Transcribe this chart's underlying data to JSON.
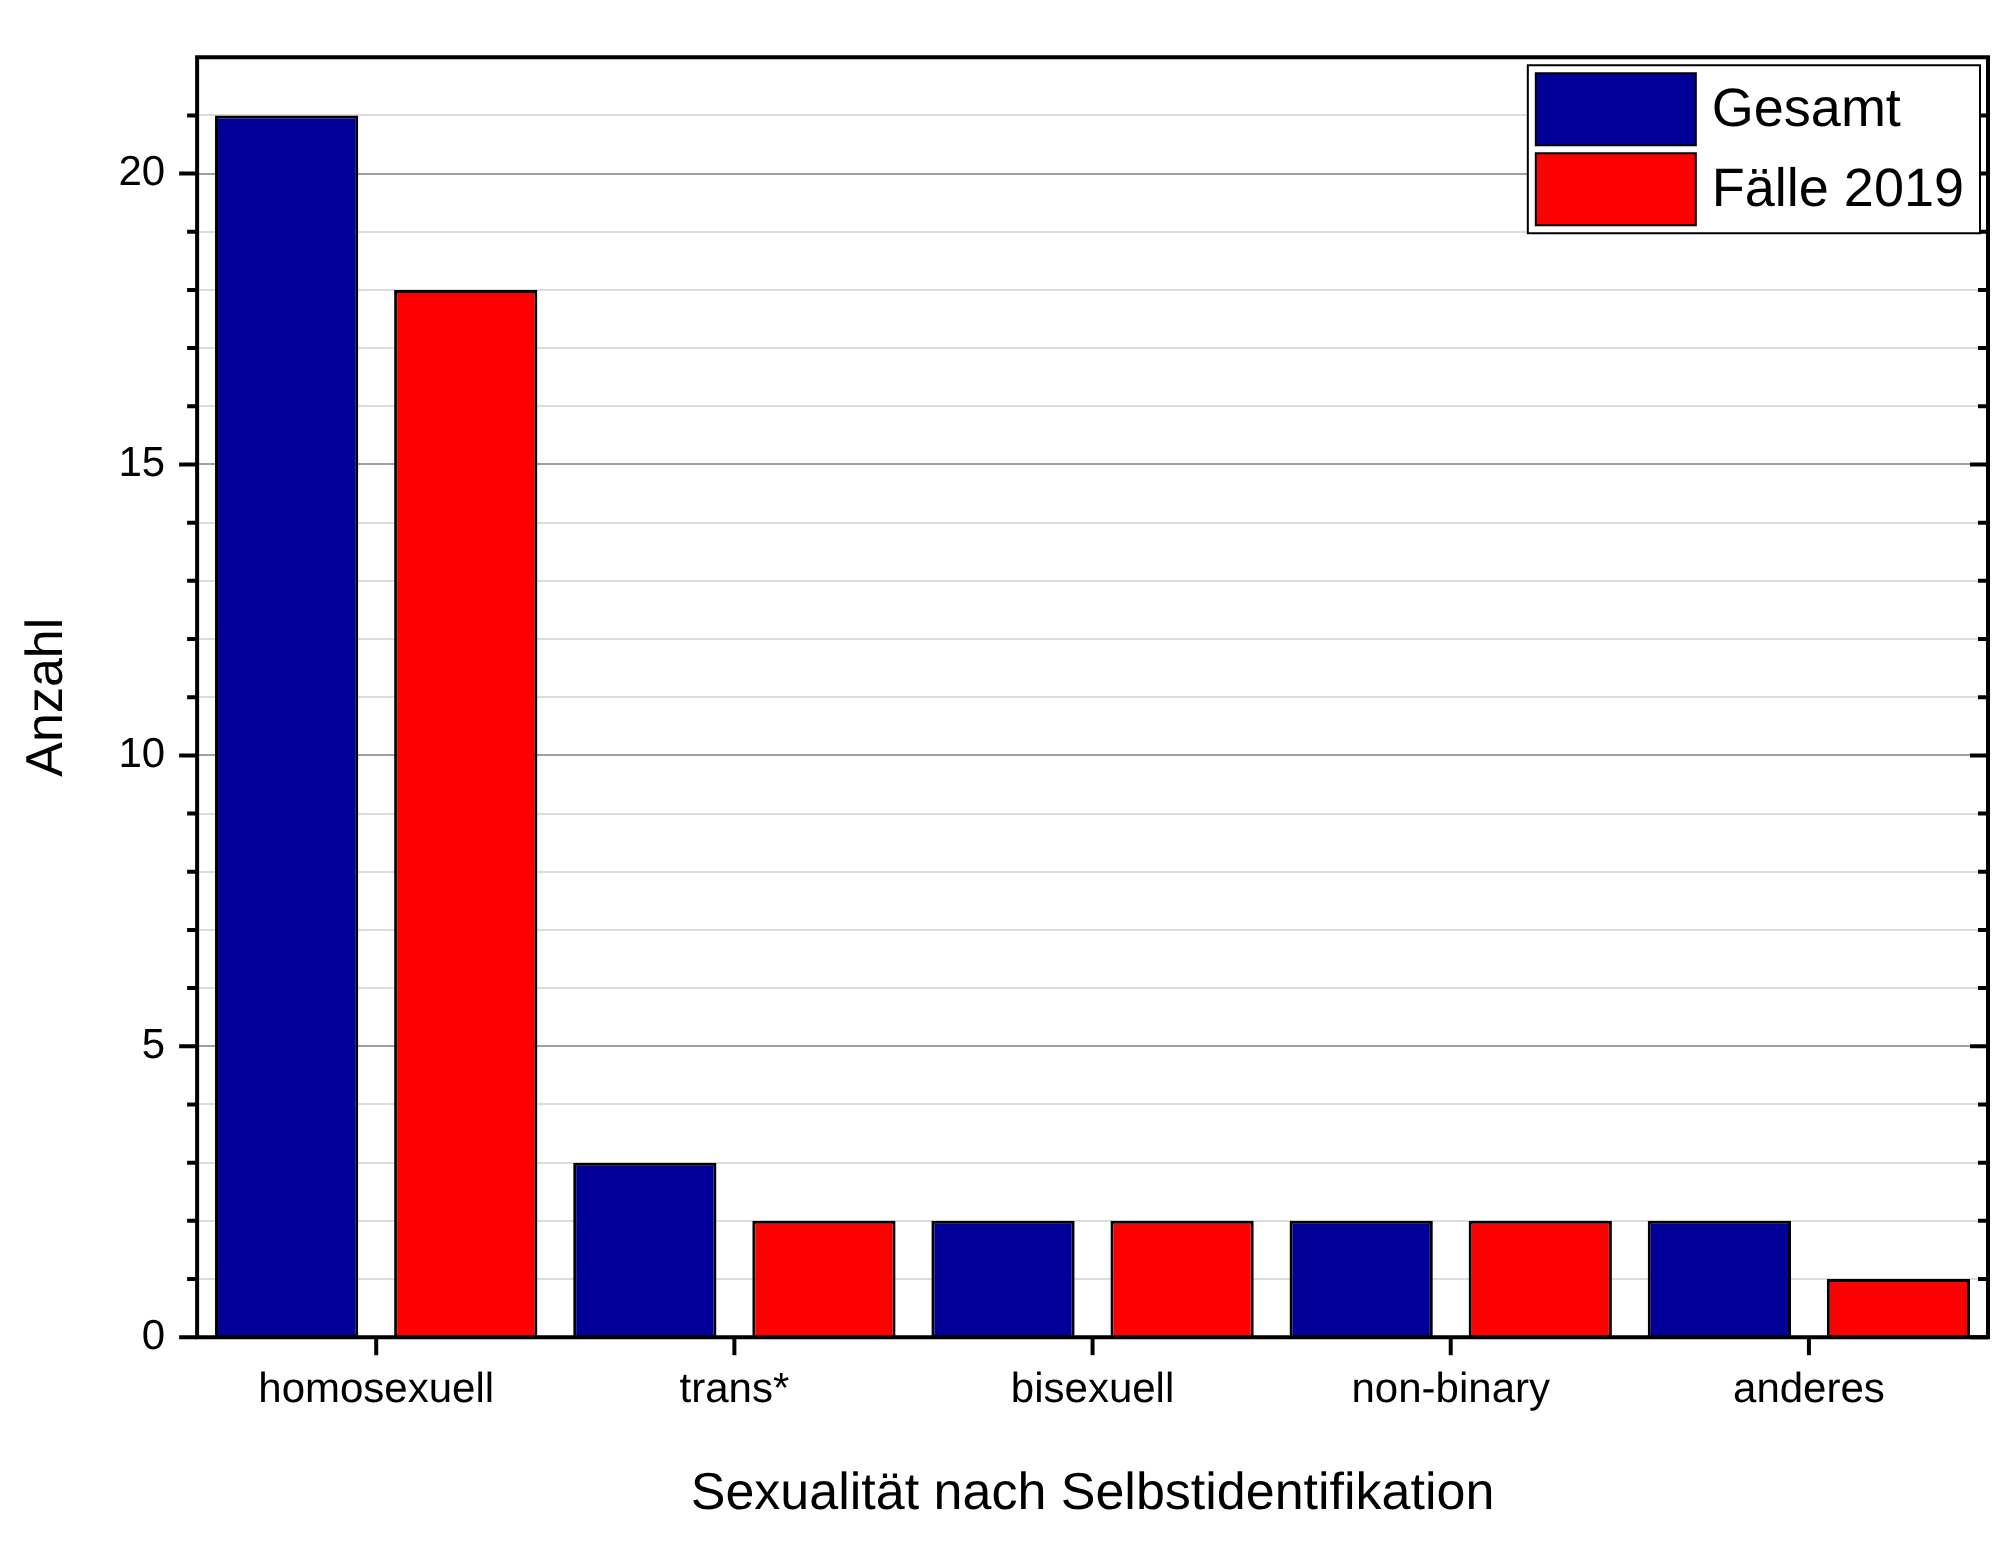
{
  "chart_data": {
    "type": "bar",
    "xlabel": "Sexualität nach Selbstidentifikation",
    "ylabel": "Anzahl",
    "categories": [
      "homosexuell",
      "trans*",
      "bisexuell",
      "non-binary",
      "anderes"
    ],
    "series": [
      {
        "name": "Gesamt",
        "color": "#000099",
        "values": [
          21,
          3,
          2,
          2,
          2
        ]
      },
      {
        "name": "Fälle 2019",
        "color": "#ff0000",
        "values": [
          18,
          2,
          2,
          2,
          1
        ]
      }
    ],
    "ylim": [
      0,
      22
    ],
    "yticks": [
      0,
      {
        "value": 1,
        "label": null
      },
      {
        "value": 2,
        "label": null
      },
      {
        "value": 3,
        "label": null
      },
      {
        "value": 4,
        "label": null
      },
      5,
      {
        "value": 6,
        "label": null
      },
      {
        "value": 7,
        "label": null
      },
      {
        "value": 8,
        "label": null
      },
      {
        "value": 9,
        "label": null
      },
      10,
      {
        "value": 11,
        "label": null
      },
      {
        "value": 12,
        "label": null
      },
      {
        "value": 13,
        "label": null
      },
      {
        "value": 14,
        "label": null
      },
      15,
      {
        "value": 16,
        "label": null
      },
      {
        "value": 17,
        "label": null
      },
      {
        "value": 18,
        "label": null
      },
      {
        "value": 19,
        "label": null
      },
      20,
      {
        "value": 21,
        "label": null
      }
    ],
    "grid": "y",
    "legend": "top right"
  }
}
